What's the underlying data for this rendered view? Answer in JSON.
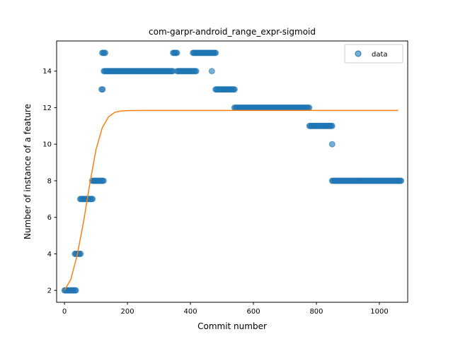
{
  "chart_data": {
    "type": "scatter",
    "title": "com-garpr-android_range_expr-sigmoid",
    "xlabel": "Commit number",
    "ylabel": "Number of instance of a feature",
    "xlim": [
      -25,
      1090
    ],
    "ylim": [
      1.35,
      15.65
    ],
    "xticks": [
      0,
      200,
      400,
      600,
      800,
      1000
    ],
    "yticks": [
      2,
      4,
      6,
      8,
      10,
      12,
      14
    ],
    "grid": false,
    "legend": {
      "placement": "top-right",
      "entries": [
        "data"
      ]
    },
    "colors": {
      "data": "#1f77b4",
      "fit": "#ff7f0e"
    },
    "series": [
      {
        "name": "data",
        "kind": "scatter",
        "segments": [
          {
            "x_start": 0,
            "x_end": 38,
            "y": 2
          },
          {
            "x_start": 33,
            "x_end": 52,
            "y": 4
          },
          {
            "x_start": 50,
            "x_end": 90,
            "y": 7
          },
          {
            "x_start": 88,
            "x_end": 125,
            "y": 8
          },
          {
            "x_start": 118,
            "x_end": 122,
            "y": 13
          },
          {
            "x_start": 120,
            "x_end": 130,
            "y": 15
          },
          {
            "x_start": 125,
            "x_end": 345,
            "y": 14
          },
          {
            "x_start": 345,
            "x_end": 358,
            "y": 15
          },
          {
            "x_start": 358,
            "x_end": 420,
            "y": 14
          },
          {
            "x_start": 408,
            "x_end": 480,
            "y": 15
          },
          {
            "x_start": 468,
            "x_end": 468,
            "y": 14
          },
          {
            "x_start": 480,
            "x_end": 540,
            "y": 13
          },
          {
            "x_start": 540,
            "x_end": 778,
            "y": 12
          },
          {
            "x_start": 778,
            "x_end": 850,
            "y": 11
          },
          {
            "x_start": 850,
            "x_end": 850,
            "y": 10
          },
          {
            "x_start": 850,
            "x_end": 1070,
            "y": 8
          }
        ]
      },
      {
        "name": "",
        "kind": "line",
        "x": [
          0,
          20,
          40,
          60,
          80,
          100,
          120,
          140,
          160,
          180,
          200,
          250,
          300,
          400,
          500,
          600,
          700,
          800,
          900,
          1000,
          1060
        ],
        "y": [
          2.0,
          2.6,
          3.9,
          5.7,
          7.8,
          9.7,
          10.9,
          11.5,
          11.75,
          11.82,
          11.84,
          11.85,
          11.85,
          11.85,
          11.85,
          11.85,
          11.85,
          11.85,
          11.85,
          11.85,
          11.85
        ]
      }
    ]
  }
}
